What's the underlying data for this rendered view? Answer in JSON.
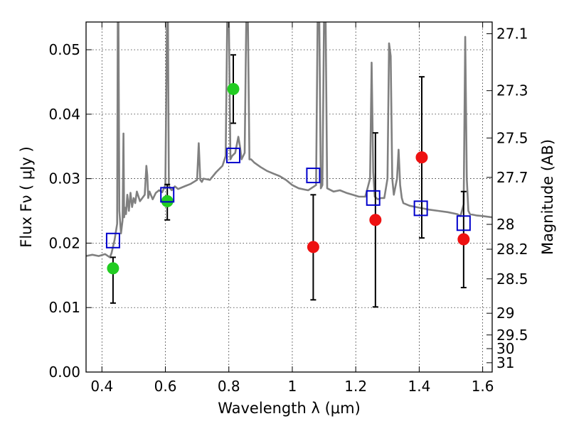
{
  "chart_data": {
    "type": "scatter",
    "xlabel": "Wavelength  λ (μm)",
    "ylabel": "Flux  Fν  ( μJy )",
    "y2label": "Magnitude (AB)",
    "xlim": [
      0.35,
      1.63
    ],
    "ylim": [
      0.0,
      0.0543
    ],
    "x_ticks": [
      0.4,
      0.6,
      0.8,
      1.0,
      1.2,
      1.4,
      1.6
    ],
    "x_tick_labels": [
      "0.4",
      "0.6",
      "0.8",
      "1",
      "1.2",
      "1.4",
      "1.6"
    ],
    "y_ticks": [
      0.0,
      0.01,
      0.02,
      0.03,
      0.04,
      0.05
    ],
    "y_tick_labels": [
      "0.00",
      "0.01",
      "0.02",
      "0.03",
      "0.04",
      "0.05"
    ],
    "y2_ticks": [
      27.1,
      27.3,
      27.5,
      27.7,
      28,
      28.2,
      28.5,
      29,
      29.5,
      30,
      31
    ],
    "y2_tick_labels": [
      "27.1",
      "27.3",
      "27.5",
      "27.7",
      "28",
      "28.2",
      "28.5",
      "29",
      "29.5",
      "30",
      "31"
    ],
    "grid": true,
    "colors": {
      "green": "#22cc22",
      "red": "#ee1111",
      "model_box": "#0000cc",
      "spectrum": "#808080",
      "errorbar": "#000000"
    },
    "series": [
      {
        "marker": "circle",
        "color": "green",
        "points": [
          {
            "x": 0.435,
            "y": 0.0161,
            "err_lo": 0.0107,
            "err_hi": 0.0178
          },
          {
            "x": 0.606,
            "y": 0.0265,
            "err_lo": 0.0236,
            "err_hi": 0.0291
          },
          {
            "x": 0.814,
            "y": 0.0439,
            "err_lo": 0.0386,
            "err_hi": 0.0492
          }
        ]
      },
      {
        "marker": "circle",
        "color": "red",
        "points": [
          {
            "x": 1.066,
            "y": 0.0194,
            "err_lo": 0.0112,
            "err_hi": 0.0275
          },
          {
            "x": 1.262,
            "y": 0.0236,
            "err_lo": 0.0101,
            "err_hi": 0.0371
          },
          {
            "x": 1.408,
            "y": 0.0333,
            "err_lo": 0.0208,
            "err_hi": 0.0458
          },
          {
            "x": 1.54,
            "y": 0.0206,
            "err_lo": 0.0131,
            "err_hi": 0.028
          }
        ]
      },
      {
        "marker": "square",
        "color": "model_box",
        "points": [
          {
            "x": 0.435,
            "y": 0.0204
          },
          {
            "x": 0.606,
            "y": 0.0275
          },
          {
            "x": 0.814,
            "y": 0.0336
          },
          {
            "x": 1.066,
            "y": 0.0305
          },
          {
            "x": 1.255,
            "y": 0.027
          },
          {
            "x": 1.405,
            "y": 0.0254
          },
          {
            "x": 1.54,
            "y": 0.0231
          }
        ]
      }
    ],
    "spectrum": {
      "color": "spectrum",
      "x": [
        0.35,
        0.37,
        0.39,
        0.41,
        0.425,
        0.43,
        0.44,
        0.448,
        0.45,
        0.452,
        0.455,
        0.46,
        0.465,
        0.468,
        0.47,
        0.473,
        0.476,
        0.48,
        0.485,
        0.49,
        0.495,
        0.5,
        0.505,
        0.51,
        0.52,
        0.535,
        0.54,
        0.543,
        0.546,
        0.55,
        0.56,
        0.57,
        0.58,
        0.59,
        0.6,
        0.605,
        0.608,
        0.611,
        0.615,
        0.62,
        0.63,
        0.64,
        0.66,
        0.68,
        0.7,
        0.705,
        0.71,
        0.715,
        0.72,
        0.74,
        0.76,
        0.78,
        0.79,
        0.795,
        0.8,
        0.805,
        0.81,
        0.82,
        0.83,
        0.835,
        0.84,
        0.85,
        0.855,
        0.86,
        0.865,
        0.87,
        0.88,
        0.9,
        0.92,
        0.94,
        0.96,
        0.98,
        1.0,
        1.02,
        1.04,
        1.05,
        1.075,
        1.08,
        1.085,
        1.09,
        1.095,
        1.1,
        1.105,
        1.11,
        1.13,
        1.15,
        1.17,
        1.19,
        1.21,
        1.23,
        1.245,
        1.25,
        1.255,
        1.26,
        1.27,
        1.28,
        1.29,
        1.3,
        1.305,
        1.31,
        1.315,
        1.32,
        1.33,
        1.335,
        1.34,
        1.345,
        1.35,
        1.37,
        1.4,
        1.43,
        1.46,
        1.49,
        1.52,
        1.53,
        1.54,
        1.545,
        1.55,
        1.555,
        1.56,
        1.58,
        1.6,
        1.63
      ],
      "y": [
        0.018,
        0.0182,
        0.018,
        0.0183,
        0.0178,
        0.0184,
        0.0205,
        0.023,
        0.055,
        0.055,
        0.025,
        0.0215,
        0.0235,
        0.037,
        0.024,
        0.0255,
        0.0245,
        0.0275,
        0.025,
        0.0278,
        0.0256,
        0.027,
        0.0262,
        0.028,
        0.0265,
        0.0275,
        0.032,
        0.0305,
        0.027,
        0.028,
        0.0268,
        0.0278,
        0.0282,
        0.0279,
        0.029,
        0.055,
        0.055,
        0.029,
        0.0285,
        0.0282,
        0.0288,
        0.0284,
        0.0288,
        0.0292,
        0.0298,
        0.0355,
        0.0298,
        0.0295,
        0.03,
        0.0298,
        0.031,
        0.032,
        0.0335,
        0.055,
        0.055,
        0.033,
        0.0335,
        0.034,
        0.0365,
        0.035,
        0.033,
        0.034,
        0.055,
        0.055,
        0.033,
        0.033,
        0.0325,
        0.0318,
        0.0312,
        0.0308,
        0.0304,
        0.0298,
        0.029,
        0.0285,
        0.0283,
        0.0282,
        0.029,
        0.055,
        0.055,
        0.0285,
        0.029,
        0.055,
        0.055,
        0.0285,
        0.028,
        0.0282,
        0.0278,
        0.0275,
        0.0272,
        0.0272,
        0.03,
        0.048,
        0.031,
        0.0272,
        0.0268,
        0.027,
        0.027,
        0.03,
        0.051,
        0.049,
        0.03,
        0.0275,
        0.03,
        0.0345,
        0.029,
        0.027,
        0.0262,
        0.0258,
        0.0255,
        0.0252,
        0.025,
        0.0248,
        0.0245,
        0.0242,
        0.026,
        0.052,
        0.03,
        0.025,
        0.0245,
        0.0243,
        0.0242,
        0.024
      ]
    }
  }
}
